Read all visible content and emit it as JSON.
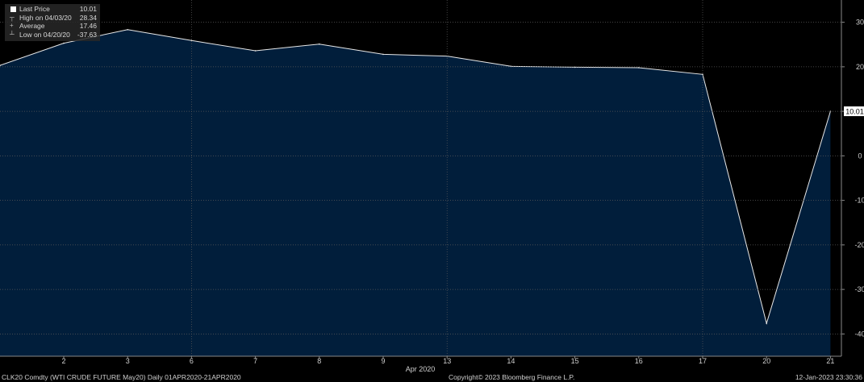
{
  "legend": {
    "last_price_label": "Last Price",
    "last_price_value": "10.01",
    "high_label": "High on 04/03/20",
    "high_value": "28.34",
    "average_label": "Average",
    "average_value": "17.46",
    "low_label": "Low on 04/20/20",
    "low_value": "-37.63"
  },
  "footer": {
    "security": "CLK20 Comdty (WTI CRUDE FUTURE  May20)  Daily 01APR2020-21APR2020",
    "copyright": "Copyright© 2023 Bloomberg Finance L.P.",
    "timestamp": "12-Jan-2023 23:30:36"
  },
  "chart_data": {
    "type": "area",
    "x_tick_labels": [
      "2",
      "3",
      "6",
      "7",
      "8",
      "9",
      "13",
      "14",
      "15",
      "16",
      "17",
      "20",
      "21"
    ],
    "x_axis_title": "Apr 2020",
    "series": [
      {
        "name": "Last Price",
        "x": [
          "2020-04-01",
          "2020-04-02",
          "2020-04-03",
          "2020-04-06",
          "2020-04-07",
          "2020-04-08",
          "2020-04-09",
          "2020-04-13",
          "2020-04-14",
          "2020-04-15",
          "2020-04-16",
          "2020-04-17",
          "2020-04-20",
          "2020-04-21"
        ],
        "values": [
          20.3,
          25.3,
          28.34,
          25.9,
          23.6,
          25.1,
          22.8,
          22.4,
          20.1,
          19.9,
          19.8,
          18.3,
          -37.63,
          10.01
        ]
      }
    ],
    "y_ticks": [
      30,
      20,
      10,
      0,
      -10,
      -20,
      -30,
      -40
    ],
    "ylim": [
      -45,
      35
    ],
    "grid": true,
    "last_value_label": "10.01",
    "colors": {
      "fill": "#011e3b",
      "line": "#e8e8e8",
      "grid": "#5a5a5a",
      "background": "#000000"
    }
  }
}
